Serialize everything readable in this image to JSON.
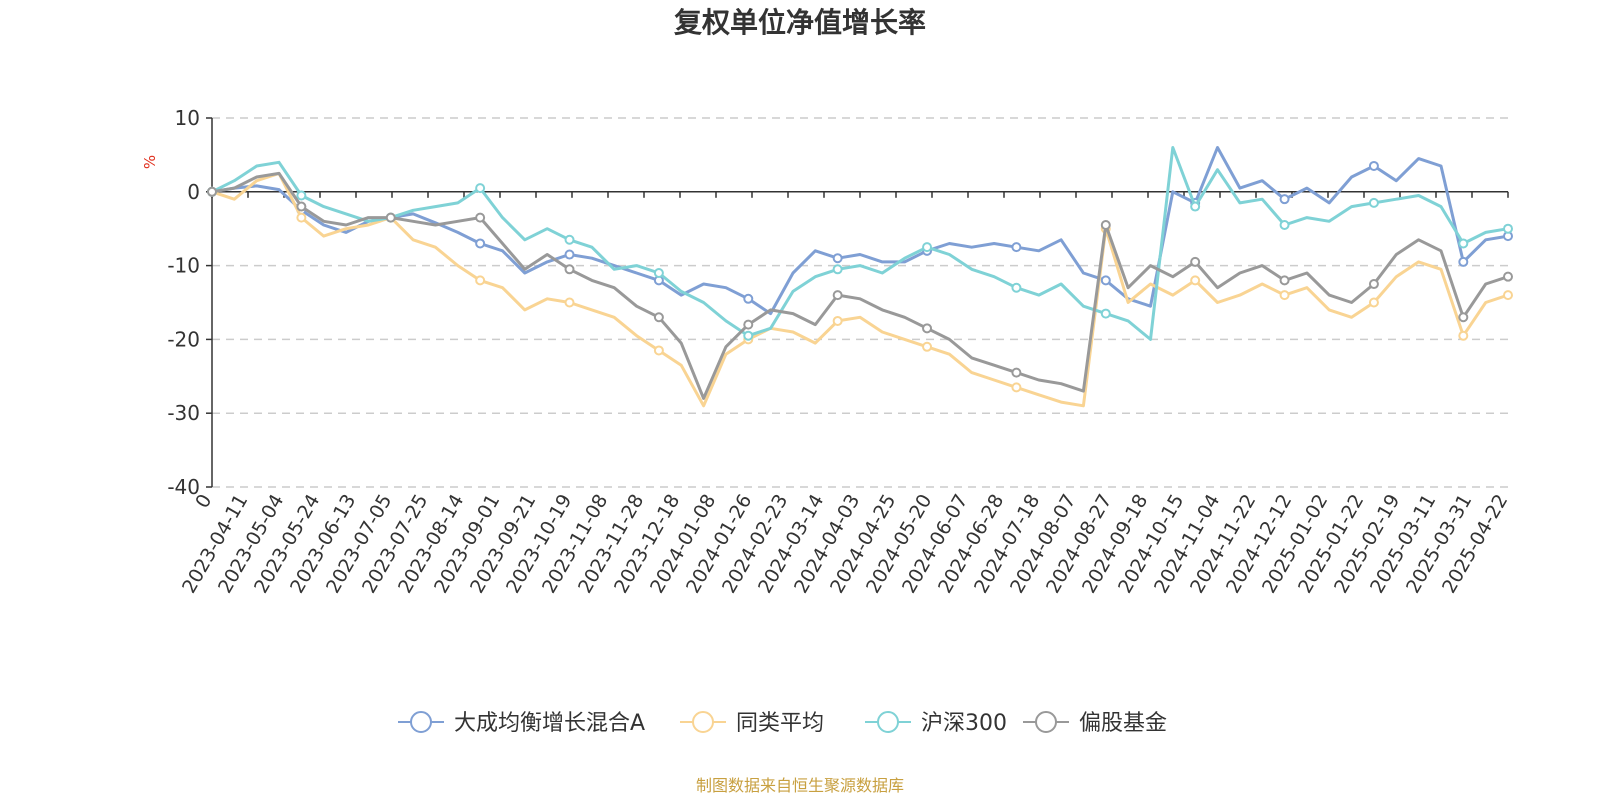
{
  "title": "复权单位净值增长率",
  "source": "制图数据来自恒生聚源数据库",
  "chart_data": {
    "type": "line",
    "title": "复权单位净值增长率",
    "ylabel": "%",
    "ylim": [
      -40,
      10
    ],
    "yticks": [
      10,
      0,
      -10,
      -20,
      -30,
      -40
    ],
    "grid": true,
    "legend_position": "bottom",
    "x_ticks": [
      "0",
      "2023-04-11",
      "2023-05-04",
      "2023-05-24",
      "2023-06-13",
      "2023-07-05",
      "2023-07-25",
      "2023-08-14",
      "2023-09-01",
      "2023-09-21",
      "2023-10-19",
      "2023-11-08",
      "2023-11-28",
      "2023-12-18",
      "2024-01-08",
      "2024-01-26",
      "2024-02-23",
      "2024-03-14",
      "2024-04-03",
      "2024-04-25",
      "2024-05-20",
      "2024-06-07",
      "2024-06-28",
      "2024-07-18",
      "2024-08-07",
      "2024-08-27",
      "2024-09-18",
      "2024-10-15",
      "2024-11-04",
      "2024-11-22",
      "2024-12-12",
      "2025-01-02",
      "2025-01-22",
      "2025-02-19",
      "2025-03-11",
      "2025-03-31",
      "2025-04-22"
    ],
    "series": [
      {
        "name": "大成均衡增长混合A",
        "color": "#7f9fd4",
        "values": [
          0,
          0.5,
          0.8,
          0.3,
          -2.5,
          -4.5,
          -5.5,
          -4,
          -3.5,
          -3,
          -4.2,
          -5.5,
          -7,
          -8,
          -11,
          -9.5,
          -8.5,
          -9,
          -10,
          -11,
          -12,
          -14,
          -12.5,
          -13,
          -14.5,
          -16.5,
          -11,
          -8,
          -9,
          -8.5,
          -9.5,
          -9.5,
          -8,
          -7,
          -7.5,
          -7,
          -7.5,
          -8,
          -6.5,
          -11,
          -12,
          -14.5,
          -15.5,
          0,
          -1.5,
          6,
          0.5,
          1.5,
          -1,
          0.5,
          -1.5,
          2,
          3.5,
          1.5,
          4.5,
          3.5,
          -9.5,
          -6.5,
          -6
        ]
      },
      {
        "name": "同类平均",
        "color": "#f9d493",
        "values": [
          0,
          -1,
          1.5,
          2.5,
          -3.5,
          -6,
          -5,
          -4.5,
          -3.5,
          -6.5,
          -7.5,
          -10,
          -12,
          -13,
          -16,
          -14.5,
          -15,
          -16,
          -17,
          -19.5,
          -21.5,
          -23.5,
          -29,
          -22,
          -20,
          -18.5,
          -19,
          -20.5,
          -17.5,
          -17,
          -19,
          -20,
          -21,
          -22,
          -24.5,
          -25.5,
          -26.5,
          -27.5,
          -28.5,
          -29,
          -5,
          -15,
          -12.5,
          -14,
          -12,
          -15,
          -14,
          -12.5,
          -14,
          -13,
          -16,
          -17,
          -15,
          -11.5,
          -9.5,
          -10.5,
          -19.5,
          -15,
          -14
        ]
      },
      {
        "name": "沪深300",
        "color": "#7fd2d6",
        "values": [
          0,
          1.5,
          3.5,
          4,
          -0.5,
          -2,
          -3,
          -4,
          -3.5,
          -2.5,
          -2,
          -1.5,
          0.5,
          -3.5,
          -6.5,
          -5,
          -6.5,
          -7.5,
          -10.5,
          -10,
          -11,
          -13.5,
          -15,
          -17.5,
          -19.5,
          -18.5,
          -13.5,
          -11.5,
          -10.5,
          -10,
          -11,
          -9,
          -7.5,
          -8.5,
          -10.5,
          -11.5,
          -13,
          -14,
          -12.5,
          -15.5,
          -16.5,
          -17.5,
          -20,
          6,
          -2,
          3,
          -1.5,
          -1,
          -4.5,
          -3.5,
          -4,
          -2,
          -1.5,
          -1,
          -0.5,
          -2,
          -7,
          -5.5,
          -5
        ]
      },
      {
        "name": "偏股基金",
        "color": "#999999",
        "values": [
          0,
          0.5,
          2,
          2.5,
          -2,
          -4,
          -4.5,
          -3.5,
          -3.5,
          -4,
          -4.5,
          -4,
          -3.5,
          -7,
          -10.5,
          -8.5,
          -10.5,
          -12,
          -13,
          -15.5,
          -17,
          -20.5,
          -28,
          -21,
          -18,
          -16,
          -16.5,
          -18,
          -14,
          -14.5,
          -16,
          -17,
          -18.5,
          -20,
          -22.5,
          -23.5,
          -24.5,
          -25.5,
          -26,
          -27,
          -4.5,
          -13,
          -10,
          -11.5,
          -9.5,
          -13,
          -11,
          -10,
          -12,
          -11,
          -14,
          -15,
          -12.5,
          -8.5,
          -6.5,
          -8,
          -17,
          -12.5,
          -11.5
        ]
      }
    ]
  }
}
